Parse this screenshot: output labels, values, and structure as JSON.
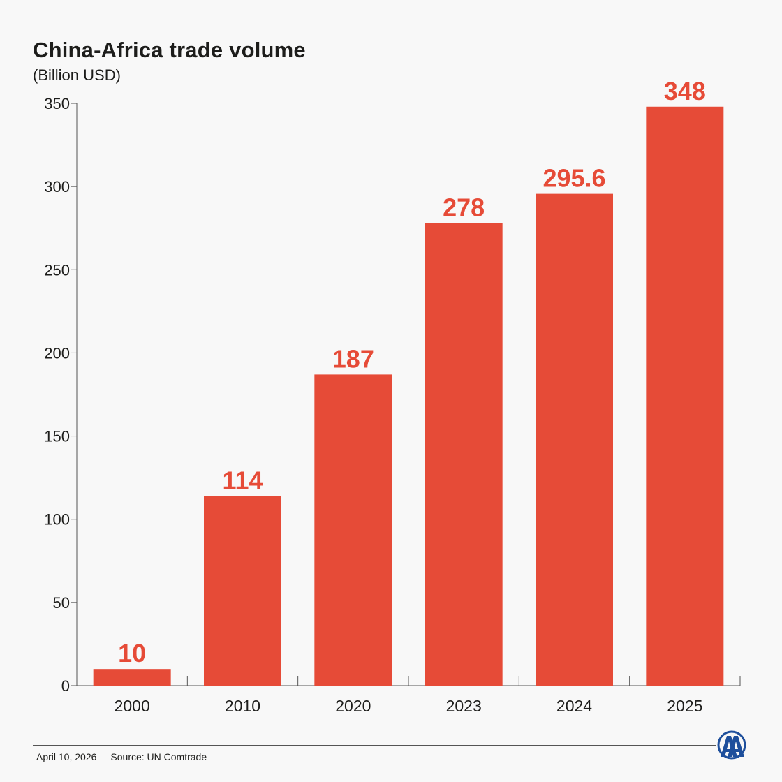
{
  "header": {
    "title": "China-Africa trade volume",
    "subtitle": "(Billion USD)"
  },
  "colors": {
    "bar": "#e64b37",
    "label": "#e64b37",
    "axis": "#555555",
    "background": "#f8f8f8"
  },
  "chart_data": {
    "type": "bar",
    "title": "China-Africa trade volume",
    "subtitle": "(Billion USD)",
    "xlabel": "",
    "ylabel": "",
    "categories": [
      "2000",
      "2010",
      "2020",
      "2023",
      "2024",
      "2025"
    ],
    "values": [
      10,
      114,
      187,
      278,
      295.6,
      348
    ],
    "value_labels": [
      "10",
      "114",
      "187",
      "278",
      "295.6",
      "348"
    ],
    "ylim": [
      0,
      350
    ],
    "yticks": [
      0,
      50,
      100,
      150,
      200,
      250,
      300,
      350
    ],
    "grid": false,
    "legend": "none"
  },
  "footer": {
    "date": "April 10, 2026",
    "source": "Source: UN Comtrade"
  },
  "logo": {
    "icon": "aa-logo-icon"
  }
}
